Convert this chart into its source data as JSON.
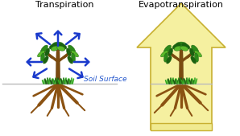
{
  "bg_color": "#ffffff",
  "title_left": "Transpiration",
  "title_right": "Evapotranspiration",
  "soil_surface_label": "Soil Surface",
  "arrow_color": "#1a3acc",
  "trunk_color": "#7a4a10",
  "trunk_color2": "#5a3508",
  "leaf_dark": "#1a6010",
  "leaf_mid": "#2d8a1a",
  "leaf_light": "#5ab82a",
  "root_color": "#8b5212",
  "grass_dark": "#1a5a10",
  "grass_light": "#33aa22",
  "house_fill": "#f5f0a0",
  "house_stroke": "#c8b030",
  "ground_fill": "#f0ea90",
  "ground_stroke": "#c8b030",
  "soil_line_color": "#bbbbbb",
  "font_size_title": 8,
  "font_size_label": 6.5,
  "label_color": "#2255cc"
}
